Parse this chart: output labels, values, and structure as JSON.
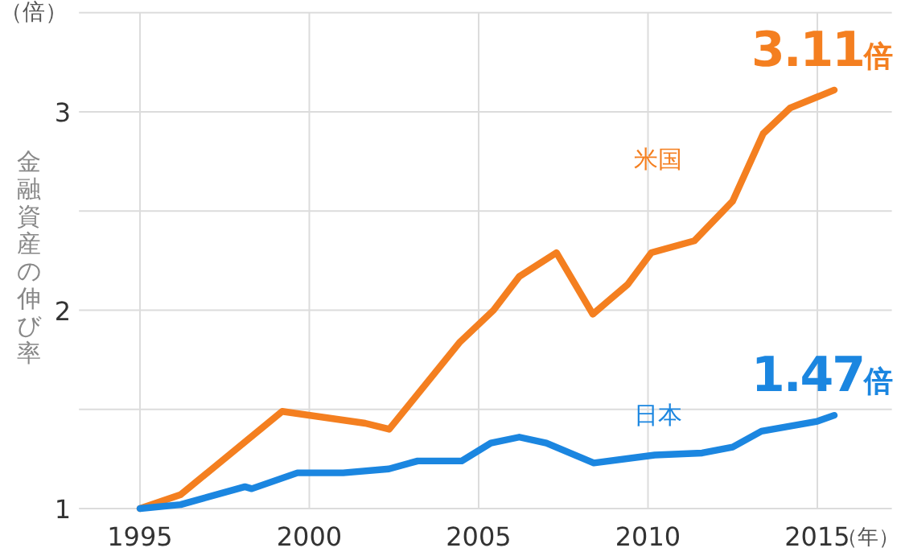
{
  "chart_data": {
    "type": "line",
    "ylabel": "金融資産の伸び率",
    "xlabel": "（年）",
    "annotations": [
      "（倍）"
    ],
    "xlim": [
      1993.2,
      2017.2
    ],
    "xticks": [
      1995,
      2000,
      2005,
      2010,
      2015
    ],
    "ylim": [
      1,
      3.5
    ],
    "yticks": [
      1,
      {
        "value": 1.5,
        "label": null
      },
      2,
      {
        "value": 2.5,
        "label": null
      },
      3,
      {
        "value": 3.5,
        "label": null
      }
    ],
    "grid": true,
    "legend": false,
    "series": [
      {
        "name": "米国",
        "color": "#f47f20",
        "x": [
          1995,
          1996.2,
          1999.2,
          2001.65,
          2002.36,
          2004.45,
          2005.44,
          2006.2,
          2007.3,
          2008.37,
          2009.4,
          2010.1,
          2011.37,
          2012.5,
          2013.4,
          2014.2,
          2015.5
        ],
        "values": [
          1.0,
          1.07,
          1.49,
          1.43,
          1.4,
          1.84,
          2.0,
          2.17,
          2.29,
          1.98,
          2.13,
          2.29,
          2.35,
          2.55,
          2.89,
          3.02,
          3.11
        ],
        "value_labels": [
          null,
          null,
          null,
          null,
          null,
          null,
          null,
          null,
          null,
          null,
          null,
          null,
          null,
          null,
          null,
          null,
          "3.11倍"
        ]
      },
      {
        "name": "日本",
        "color": "#1b86e0",
        "x": [
          1995,
          1996.2,
          1998.1,
          1998.3,
          1999.65,
          2001,
          2002.35,
          2003.2,
          2004.5,
          2005.36,
          2006.2,
          2007,
          2008.4,
          2010.2,
          2011.6,
          2012.5,
          2013.35,
          2015.0,
          2015.5
        ],
        "values": [
          1.0,
          1.02,
          1.11,
          1.1,
          1.18,
          1.18,
          1.2,
          1.24,
          1.24,
          1.33,
          1.36,
          1.33,
          1.23,
          1.27,
          1.28,
          1.31,
          1.39,
          1.44,
          1.47
        ],
        "value_labels": [
          null,
          null,
          null,
          null,
          null,
          null,
          null,
          null,
          null,
          null,
          null,
          null,
          null,
          null,
          null,
          null,
          null,
          null,
          "1.47倍"
        ]
      }
    ]
  }
}
